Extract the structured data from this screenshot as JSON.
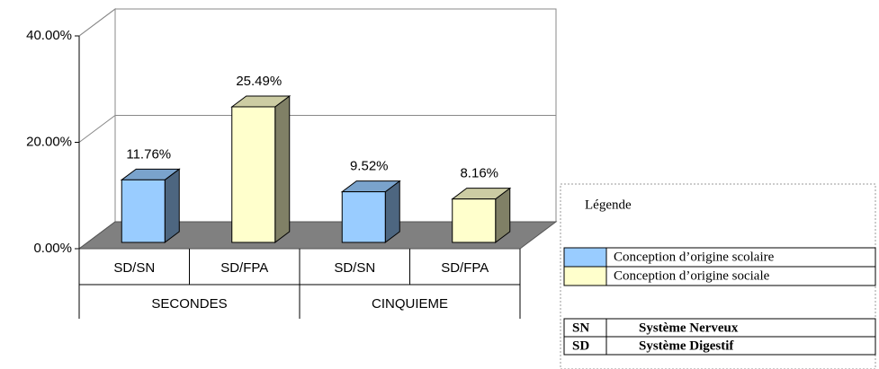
{
  "chart_data": {
    "type": "bar3d",
    "categories": [
      "SD/SN",
      "SD/FPA",
      "SD/SN",
      "SD/FPA"
    ],
    "groups": [
      "SECONDES",
      "CINQUIEME"
    ],
    "values": [
      11.76,
      25.49,
      9.52,
      8.16
    ],
    "value_labels": [
      "11.76%",
      "25.49%",
      "9.52%",
      "8.16%"
    ],
    "colors": [
      "#99ccff",
      "#ffffcc",
      "#99ccff",
      "#ffffcc"
    ],
    "ylim": [
      0,
      40
    ],
    "yticks": [
      {
        "value": 0,
        "label": "0.00%"
      },
      {
        "value": 20,
        "label": "20.00%"
      },
      {
        "value": 40,
        "label": "40.00%"
      }
    ],
    "grid": true
  },
  "legend": {
    "title": "Légende",
    "entries": [
      {
        "label": "Conception d’origine scolaire",
        "color": "#99ccff"
      },
      {
        "label": "Conception d’origine sociale",
        "color": "#ffffcc"
      }
    ]
  },
  "abbreviations": {
    "rows": [
      [
        "SN",
        "Système Nerveux"
      ],
      [
        "SD",
        "Système Digestif"
      ]
    ]
  }
}
